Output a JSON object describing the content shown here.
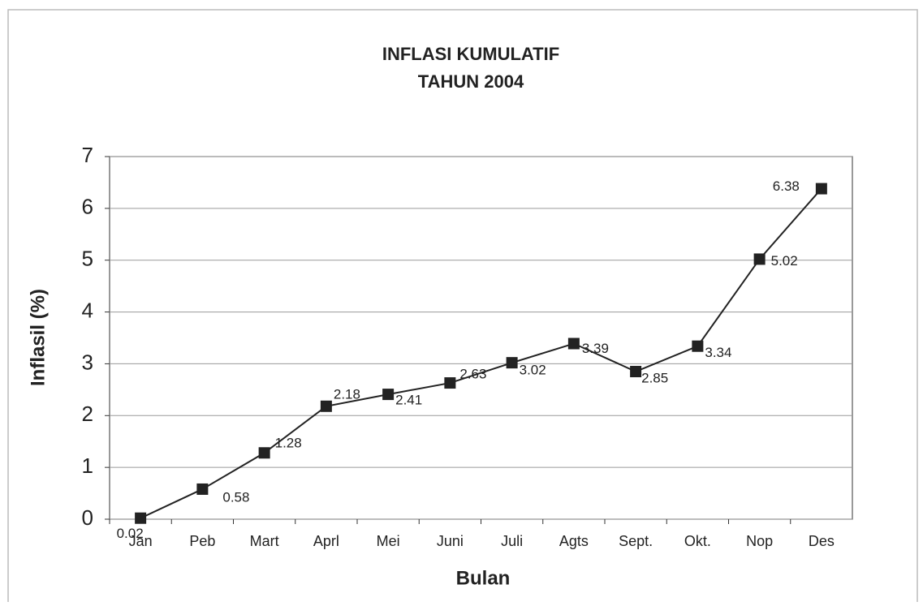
{
  "chart_data": {
    "type": "line",
    "title": "INFLASI KUMULATIF",
    "subtitle": "TAHUN 2004",
    "x_label": "Bulan",
    "y_label": "Inflasil (%)",
    "categories": [
      "Jan",
      "Peb",
      "Mart",
      "Aprl",
      "Mei",
      "Juni",
      "Juli",
      "Agts",
      "Sept.",
      "Okt.",
      "Nop",
      "Des"
    ],
    "values": [
      0.02,
      0.58,
      1.28,
      2.18,
      2.41,
      2.63,
      3.02,
      3.39,
      2.85,
      3.34,
      5.02,
      6.38
    ],
    "color": "#222222",
    "ylim": [
      0,
      7
    ],
    "yticks": [
      0,
      1,
      2,
      3,
      4,
      5,
      6,
      7
    ],
    "grid": true
  }
}
